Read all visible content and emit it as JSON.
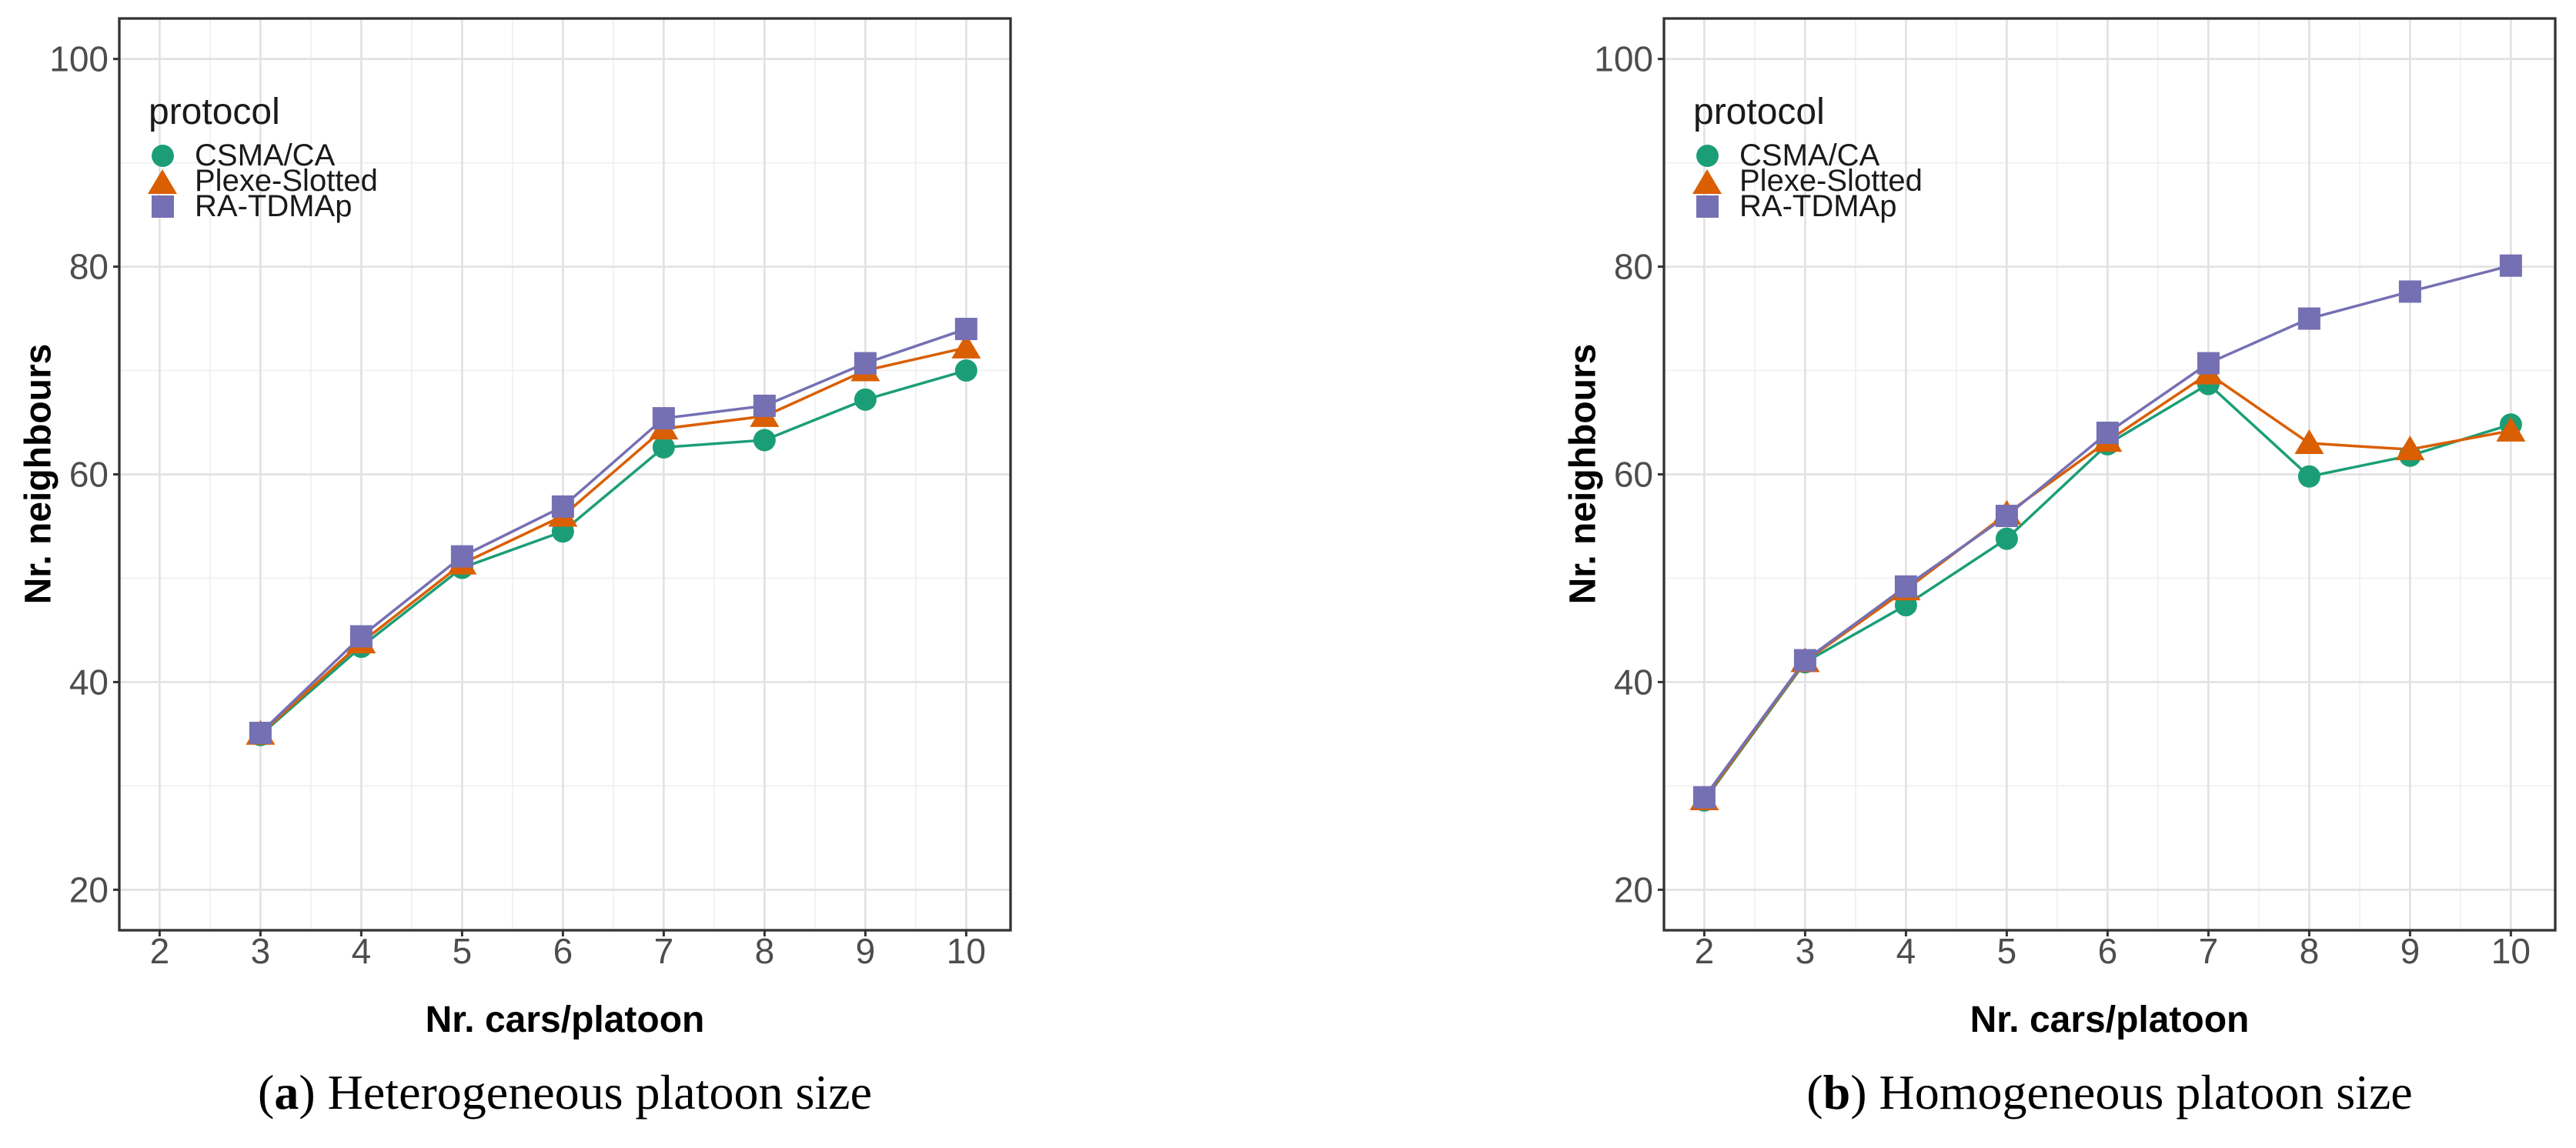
{
  "colors": {
    "csma": "#1B9E77",
    "plexe": "#D95F02",
    "ratdmap": "#7570B3",
    "grid_major": "#E2E2E2",
    "grid_minor": "#F0F0F0",
    "panel_border": "#333333",
    "axis_tick": "#333333",
    "tick_label": "#4D4D4D"
  },
  "chart_data": [
    {
      "type": "line",
      "panel": "a",
      "caption": "(a) Heterogeneous platoon size",
      "caption_parts": {
        "open": "(",
        "label": "a",
        "rest": ") Heterogeneous platoon size"
      },
      "xlabel": "Nr. cars/platoon",
      "ylabel": "Nr. neighbours",
      "legend": {
        "title": "protocol",
        "position": "top-left-inside"
      },
      "x_ticks": [
        2,
        3,
        4,
        5,
        6,
        7,
        8,
        9,
        10
      ],
      "y_ticks": [
        20,
        40,
        60,
        80,
        100
      ],
      "xlim": [
        1.6,
        10.44
      ],
      "ylim": [
        16.1,
        103.9
      ],
      "grid": {
        "major": true,
        "minor": true
      },
      "x": [
        3,
        4,
        5,
        6,
        7,
        8,
        9,
        10
      ],
      "series": [
        {
          "name": "CSMA/CA",
          "marker": "circle",
          "color_key": "csma",
          "values": [
            34.9,
            43.4,
            51.0,
            54.5,
            62.6,
            63.3,
            67.2,
            70.0
          ]
        },
        {
          "name": "Plexe-Slotted",
          "marker": "triangle",
          "color_key": "plexe",
          "values": [
            35.0,
            43.8,
            51.4,
            56.0,
            64.4,
            65.6,
            70.0,
            72.2
          ]
        },
        {
          "name": "RA-TDMAp",
          "marker": "square",
          "color_key": "ratdmap",
          "values": [
            35.1,
            44.4,
            52.1,
            56.9,
            65.4,
            66.6,
            70.7,
            74.0
          ]
        }
      ]
    },
    {
      "type": "line",
      "panel": "b",
      "caption": "(b) Homogeneous platoon size",
      "caption_parts": {
        "open": "(",
        "label": "b",
        "rest": ") Homogeneous platoon size"
      },
      "xlabel": "Nr. cars/platoon",
      "ylabel": "Nr. neighbours",
      "legend": {
        "title": "protocol",
        "position": "top-left-inside"
      },
      "x_ticks": [
        2,
        3,
        4,
        5,
        6,
        7,
        8,
        9,
        10
      ],
      "y_ticks": [
        20,
        40,
        60,
        80,
        100
      ],
      "xlim": [
        1.6,
        10.44
      ],
      "ylim": [
        16.1,
        103.9
      ],
      "grid": {
        "major": true,
        "minor": true
      },
      "x": [
        2,
        3,
        4,
        5,
        6,
        7,
        8,
        9,
        10
      ],
      "series": [
        {
          "name": "CSMA/CA",
          "marker": "circle",
          "color_key": "csma",
          "values": [
            28.6,
            41.9,
            47.4,
            53.8,
            62.9,
            68.7,
            59.8,
            61.8,
            64.8
          ]
        },
        {
          "name": "Plexe-Slotted",
          "marker": "triangle",
          "color_key": "plexe",
          "values": [
            28.7,
            42.0,
            48.9,
            56.2,
            63.2,
            69.7,
            63.0,
            62.4,
            64.2
          ]
        },
        {
          "name": "RA-TDMAp",
          "marker": "square",
          "color_key": "ratdmap",
          "values": [
            28.9,
            42.1,
            49.2,
            56.0,
            64.0,
            70.7,
            75.0,
            77.6,
            80.1
          ]
        }
      ]
    }
  ]
}
